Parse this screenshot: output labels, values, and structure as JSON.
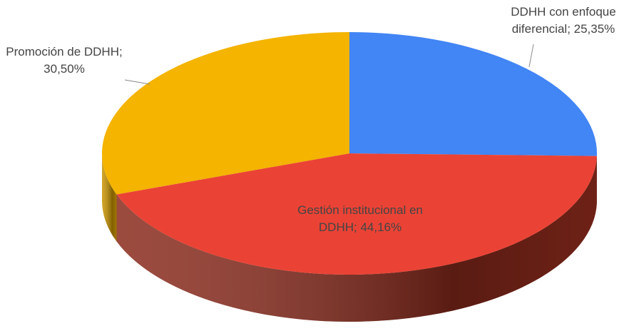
{
  "chart_data": {
    "type": "pie3d",
    "values": [
      25.35,
      44.16,
      30.5
    ],
    "value_labels": [
      "DDHH con enfoque diferencial; 25,35%",
      "Gestión institucional en DDHH; 44,16%",
      "Promoción de DDHH; 30,50%"
    ],
    "colors": [
      "#4285f4",
      "#ea4335",
      "#f4b400"
    ],
    "side_colors": [
      "#2a5db0",
      "#8a2a1c",
      "#c99400"
    ]
  }
}
